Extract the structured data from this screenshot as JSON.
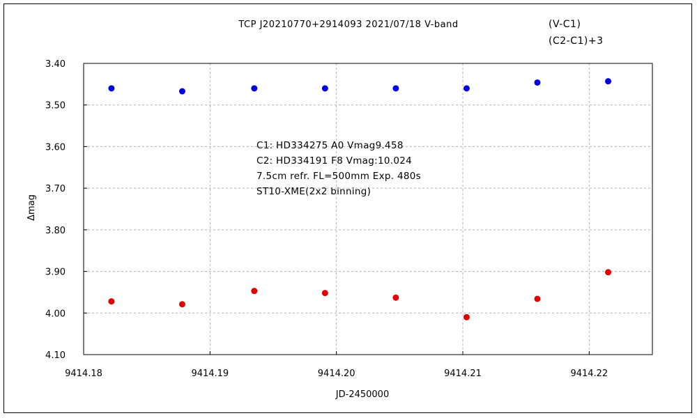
{
  "chart_data": {
    "type": "scatter",
    "title": "TCP J20210770+2914093    2021/07/18    V-band",
    "xlabel": "JD-2450000",
    "ylabel": "Δmag",
    "xlim": [
      9414.18,
      9414.225
    ],
    "ylim": [
      4.1,
      3.4
    ],
    "y_inverted": true,
    "grid": true,
    "x_ticks": [
      "9414.18",
      "9414.19",
      "9414.20",
      "9414.21",
      "9414.22"
    ],
    "x_tick_values": [
      9414.18,
      9414.19,
      9414.2,
      9414.21,
      9414.22
    ],
    "y_ticks": [
      "3.40",
      "3.50",
      "3.60",
      "3.70",
      "3.80",
      "3.90",
      "4.00",
      "4.10"
    ],
    "y_tick_values": [
      3.4,
      3.5,
      3.6,
      3.7,
      3.8,
      3.9,
      4.0,
      4.1
    ],
    "legend_placement": "top-right",
    "series": [
      {
        "name": "(V-C1)",
        "color": "#e00000",
        "points": [
          {
            "x": 9414.1822,
            "y": 3.972
          },
          {
            "x": 9414.1878,
            "y": 3.979
          },
          {
            "x": 9414.1935,
            "y": 3.947
          },
          {
            "x": 9414.1991,
            "y": 3.952
          },
          {
            "x": 9414.2047,
            "y": 3.963
          },
          {
            "x": 9414.2103,
            "y": 4.01
          },
          {
            "x": 9414.2159,
            "y": 3.966
          },
          {
            "x": 9414.2215,
            "y": 3.902
          }
        ]
      },
      {
        "name": "(C2-C1)+3",
        "color": "#0000e0",
        "points": [
          {
            "x": 9414.1822,
            "y": 3.46
          },
          {
            "x": 9414.1878,
            "y": 3.467
          },
          {
            "x": 9414.1935,
            "y": 3.46
          },
          {
            "x": 9414.1991,
            "y": 3.46
          },
          {
            "x": 9414.2047,
            "y": 3.46
          },
          {
            "x": 9414.2103,
            "y": 3.46
          },
          {
            "x": 9414.2159,
            "y": 3.446
          },
          {
            "x": 9414.2215,
            "y": 3.443
          }
        ]
      }
    ],
    "annotations": [
      "C1: HD334275 A0  Vmag9.458",
      "C2: HD334191 F8  Vmag:10.024",
      "7.5cm refr. FL=500mm Exp. 480s",
      "ST10-XME(2x2 binning)"
    ]
  }
}
